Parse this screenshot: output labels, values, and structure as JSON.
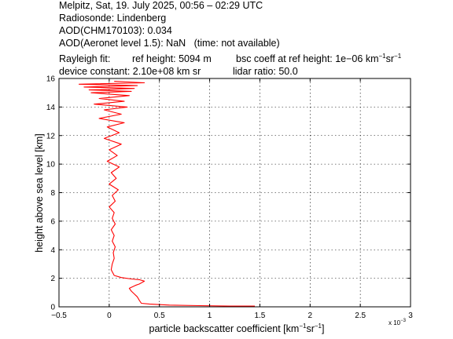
{
  "header": {
    "line1": "Melpitz, Sat, 19. July 2025, 00:56 – 02:29 UTC",
    "line2": "Radiosonde: Lindenberg",
    "line3": "AOD(CHM170103): 0.034",
    "line4": "AOD(Aeronet level 1.5): NaN   (time: not available)",
    "rayleigh_label": "Rayleigh fit:",
    "ref_height": "ref height: 5094 m",
    "bsc_coeff_prefix": "bsc coeff at ref height: 1e−06 km",
    "bsc_coeff_unit_mid": "sr",
    "device_constant": "device constant: 2.10e+08 km sr",
    "lidar_ratio": "lidar ratio: 50.0",
    "exp_minus1": "−1"
  },
  "chart_data": {
    "type": "line",
    "xlabel_prefix": "particle backscatter coefficient [km",
    "xlabel_mid": "sr",
    "xlabel_suffix": "]",
    "xlabel_exp": "−1",
    "ylabel": "height above sea level [km]",
    "x_multiplier": "x 10",
    "x_multiplier_exp": "−3",
    "xlim": [
      -0.5,
      3
    ],
    "ylim": [
      0,
      16
    ],
    "xticks": [
      -0.5,
      0,
      0.5,
      1,
      1.5,
      2,
      2.5,
      3
    ],
    "xtick_labels": [
      "−0.5",
      "0",
      "0.5",
      "1",
      "1.5",
      "2",
      "2.5",
      "3"
    ],
    "yticks": [
      0,
      2,
      4,
      6,
      8,
      10,
      12,
      14,
      16
    ],
    "ytick_labels": [
      "0",
      "2",
      "4",
      "6",
      "8",
      "10",
      "12",
      "14",
      "16"
    ],
    "grid": true,
    "series_color": "#ff0000",
    "series": [
      {
        "x": [
          1.45,
          1.2,
          0.9,
          0.6,
          0.4,
          0.32,
          0.3,
          0.28,
          0.25,
          0.22,
          0.2,
          0.26,
          0.3,
          0.35,
          0.3,
          0.22,
          0.12,
          0.05,
          0.02,
          0.03,
          0.05,
          0.04,
          0.06,
          0.03,
          0.05,
          0.02,
          0.06,
          0.03,
          0.05,
          0.0,
          0.06,
          0.03,
          0.09,
          0.0,
          0.07,
          0.02,
          0.1,
          -0.02,
          0.08,
          0.0,
          0.12,
          -0.05,
          0.1,
          -0.02,
          0.15,
          -0.1,
          0.12,
          -0.05,
          0.18,
          -0.15,
          0.15,
          -0.1,
          0.2,
          -0.18,
          0.22,
          -0.2,
          0.25,
          -0.25,
          0.28,
          -0.3,
          0.35,
          0.05
        ],
        "y": [
          0.05,
          0.05,
          0.08,
          0.12,
          0.2,
          0.25,
          0.45,
          0.7,
          0.9,
          1.1,
          1.3,
          1.5,
          1.6,
          1.8,
          1.9,
          1.95,
          2.05,
          2.2,
          2.6,
          3.0,
          3.4,
          3.8,
          4.2,
          4.6,
          5.0,
          5.4,
          5.8,
          6.2,
          6.6,
          7.0,
          7.4,
          7.8,
          8.2,
          8.6,
          9.0,
          9.4,
          9.8,
          10.2,
          10.6,
          11.0,
          11.4,
          11.8,
          12.2,
          12.6,
          12.9,
          13.2,
          13.5,
          13.8,
          14.0,
          14.2,
          14.4,
          14.6,
          14.8,
          15.0,
          15.1,
          15.2,
          15.3,
          15.4,
          15.5,
          15.6,
          15.7,
          15.8
        ]
      }
    ]
  }
}
